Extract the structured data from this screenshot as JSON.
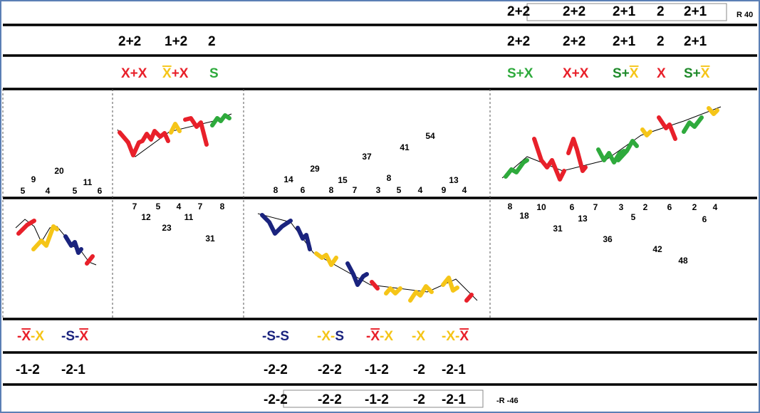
{
  "top_row": {
    "groups": [
      "2+2",
      "2+2",
      "2+1",
      "2",
      "2+1"
    ],
    "note": "R 40"
  },
  "row2": {
    "left": [
      "2+2",
      "1+2",
      "2"
    ],
    "right": [
      "2+2",
      "2+2",
      "2+1",
      "2",
      "2+1"
    ]
  },
  "row3": {
    "left": [
      [
        {
          "text": "X+X",
          "color": "#e8202a",
          "overline": false
        }
      ],
      [
        {
          "text": "X",
          "color": "#f5c518",
          "overline": true
        },
        {
          "text": "+X",
          "color": "#e8202a",
          "overline": false
        }
      ],
      [
        {
          "text": "S",
          "color": "#2eaa3c",
          "overline": false
        }
      ]
    ],
    "right": [
      [
        {
          "text": "S+X",
          "color": "#2eaa3c",
          "overline": false
        }
      ],
      [
        {
          "text": "X+X",
          "color": "#e8202a",
          "overline": false
        }
      ],
      [
        {
          "text": "S+",
          "color": "#1f8a2a",
          "overline": false
        },
        {
          "text": "X",
          "color": "#f5c518",
          "overline": true
        }
      ],
      [
        {
          "text": "X",
          "color": "#e8202a",
          "overline": false
        }
      ],
      [
        {
          "text": "S+",
          "color": "#1f8a2a",
          "overline": false
        },
        {
          "text": "X",
          "color": "#f5c518",
          "overline": true
        }
      ]
    ]
  },
  "panel_numbers": {
    "upper_left": [
      5,
      9,
      4,
      20,
      5,
      11,
      6
    ],
    "lower_second": [
      7,
      12,
      5,
      23,
      4,
      11,
      7,
      31,
      8
    ],
    "upper_third": [
      8,
      14,
      6,
      29,
      8,
      15,
      7,
      37,
      3,
      8,
      5,
      41,
      4,
      54,
      9,
      13,
      4
    ],
    "lower_right": [
      8,
      18,
      10,
      31,
      6,
      13,
      7,
      36,
      3,
      5,
      2,
      42,
      6,
      48,
      2,
      6,
      4
    ]
  },
  "bottom_signs": {
    "left": [
      [
        {
          "text": "-",
          "color": "#e8202a",
          "overline": false
        },
        {
          "text": "X",
          "color": "#e8202a",
          "overline": true
        },
        {
          "text": "-X",
          "color": "#f5c518",
          "overline": false
        }
      ],
      [
        {
          "text": "-S-",
          "color": "#1a237e",
          "overline": false
        },
        {
          "text": "X",
          "color": "#e8202a",
          "overline": true
        }
      ]
    ],
    "middle": [
      [
        {
          "text": "-S-S",
          "color": "#1a237e",
          "overline": false
        }
      ],
      [
        {
          "text": "-X-",
          "color": "#f5c518",
          "overline": false
        },
        {
          "text": "S",
          "color": "#1a237e",
          "overline": false
        }
      ],
      [
        {
          "text": "-",
          "color": "#e8202a",
          "overline": false
        },
        {
          "text": "X",
          "color": "#e8202a",
          "overline": true
        },
        {
          "text": "-X",
          "color": "#f5c518",
          "overline": false
        }
      ],
      [
        {
          "text": "-X",
          "color": "#f5c518",
          "overline": false
        }
      ],
      [
        {
          "text": "-X-",
          "color": "#f5c518",
          "overline": false
        },
        {
          "text": "X",
          "color": "#e8202a",
          "overline": true
        }
      ]
    ]
  },
  "bottom_row1": {
    "left": [
      "-1-2",
      "-2-1"
    ],
    "middle": [
      "-2-2",
      "-2-2",
      "-1-2",
      "-2",
      "-2-1"
    ]
  },
  "bottom_row2": {
    "groups": [
      "-2-2",
      "-2-2",
      "-1-2",
      "-2",
      "-2-1"
    ],
    "note": "-R -46"
  }
}
